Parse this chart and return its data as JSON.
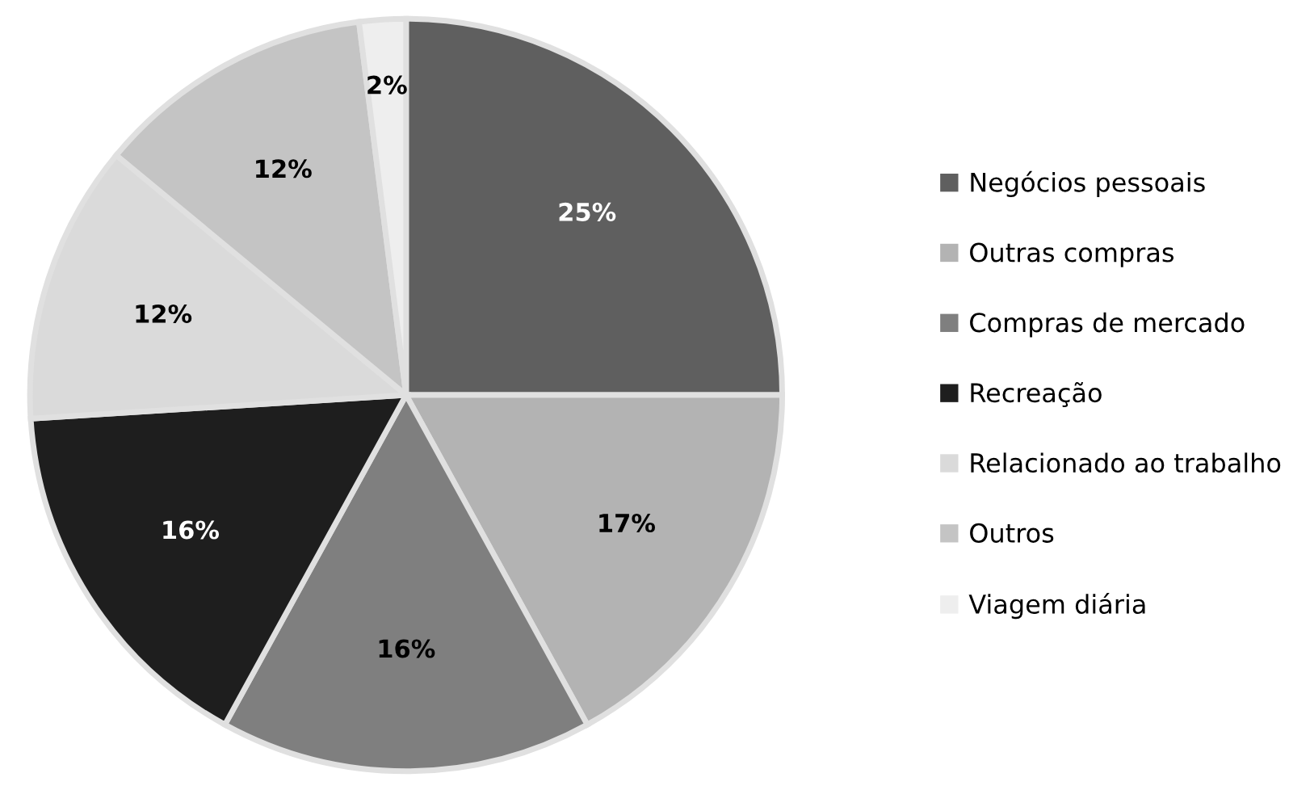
{
  "chart_data": {
    "type": "pie",
    "categories": [
      "Negócios pessoais",
      "Outras compras",
      "Compras de mercado",
      "Recreação",
      "Relacionado ao trabalho",
      "Outros",
      "Viagem diária"
    ],
    "values": [
      25,
      17,
      16,
      16,
      12,
      12,
      2
    ],
    "colors": [
      "#5f5f5f",
      "#b3b3b3",
      "#7f7f7f",
      "#1e1e1e",
      "#dadada",
      "#c4c4c4",
      "#eeeeee"
    ],
    "value_labels": [
      "25%",
      "17%",
      "16%",
      "16%",
      "12%",
      "12%",
      "2%"
    ],
    "legend": "right"
  }
}
